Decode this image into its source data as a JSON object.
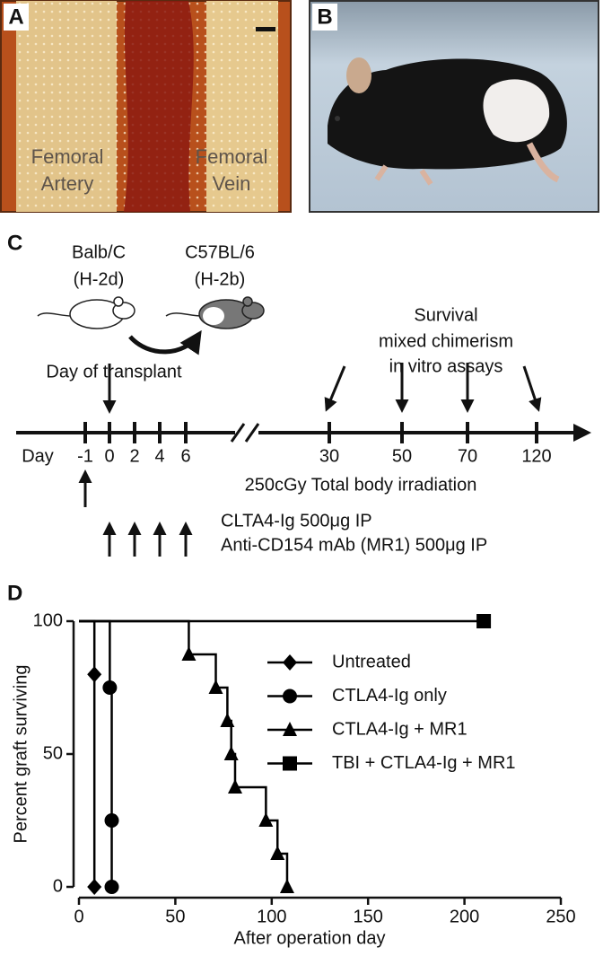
{
  "panels": {
    "a": {
      "label": "A",
      "artery": [
        "Femoral",
        "Artery"
      ],
      "vein": [
        "Femoral",
        "Vein"
      ]
    },
    "b": {
      "label": "B"
    },
    "c": {
      "label": "C",
      "donor": [
        "Balb/C",
        "(H-2d)"
      ],
      "recipient": [
        "C57BL/6",
        "(H-2b)"
      ],
      "transplant": "Day of transplant",
      "readouts": [
        "Survival",
        "mixed chimerism",
        "in vitro assays"
      ],
      "day_label": "Day",
      "days": [
        "-1",
        "0",
        "2",
        "4",
        "6",
        "30",
        "50",
        "70",
        "120"
      ],
      "irradiation": "250cGy Total body irradiation",
      "treatments": [
        "CLTA4-Ig 500μg IP",
        "Anti-CD154 mAb (MR1) 500μg IP"
      ]
    }
  },
  "chart_data": {
    "type": "step",
    "panel_label": "D",
    "xlabel": "After operation day",
    "ylabel": "Percent graft surviving",
    "xlim": [
      0,
      250
    ],
    "ylim": [
      0,
      100
    ],
    "xticks": [
      0,
      50,
      100,
      150,
      200,
      250
    ],
    "yticks": [
      0,
      50,
      100
    ],
    "series": [
      {
        "name": "Untreated",
        "color": "#000000",
        "marker": "diamond",
        "x": [
          8,
          8
        ],
        "values": [
          80,
          0
        ]
      },
      {
        "name": "CTLA4-Ig only",
        "color": "#000000",
        "marker": "circle",
        "x": [
          16,
          17,
          17
        ],
        "values": [
          75,
          25,
          0
        ]
      },
      {
        "name": "CTLA4-Ig + MR1",
        "color": "#000000",
        "marker": "triangle",
        "x": [
          57,
          71,
          77,
          79,
          81,
          97,
          103,
          108
        ],
        "values": [
          87.5,
          75,
          62.5,
          50,
          37.5,
          25,
          12.5,
          0
        ]
      },
      {
        "name": "TBI + CTLA4-Ig + MR1",
        "color": "#000000",
        "marker": "square",
        "x": [
          210
        ],
        "values": [
          100
        ]
      }
    ]
  }
}
